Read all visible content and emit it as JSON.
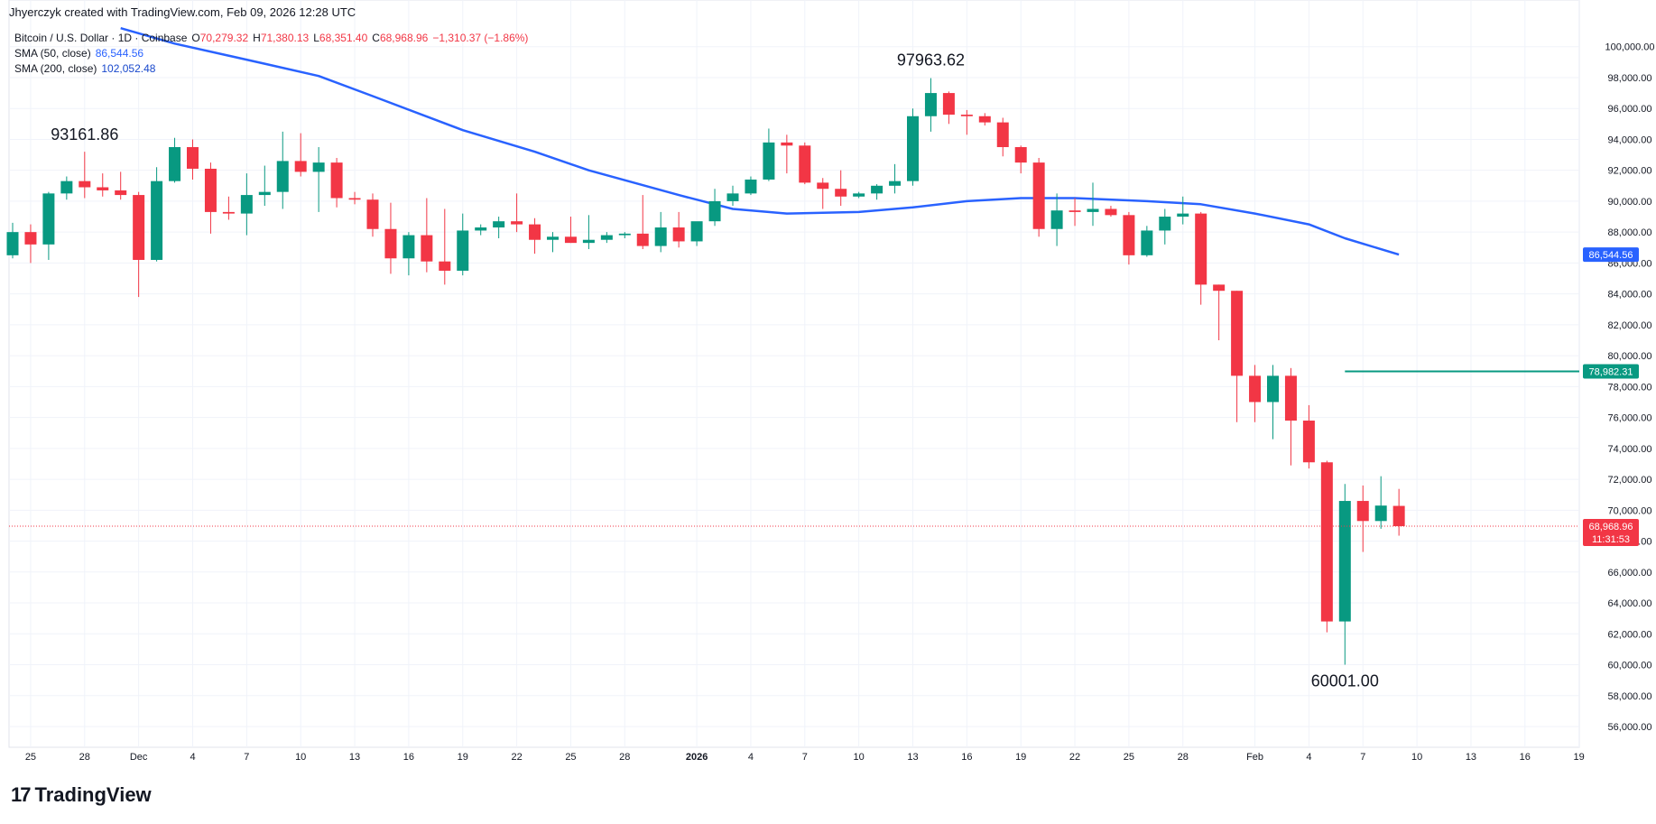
{
  "header": {
    "credit": "Jhyerczyk created with TradingView.com, Feb 09, 2026 12:28 UTC"
  },
  "legend": {
    "symbol": "Bitcoin / U.S. Dollar · 1D · Coinbase",
    "o_label": "O",
    "o": "70,279.32",
    "h_label": "H",
    "h": "71,380.13",
    "l_label": "L",
    "l": "68,351.40",
    "c_label": "C",
    "c": "68,968.96",
    "change": "−1,310.37 (−1.86%)",
    "sma50_label": "SMA (50, close)",
    "sma50_value": "86,544.56",
    "sma200_label": "SMA (200, close)",
    "sma200_value": "102,052.48"
  },
  "footer": {
    "logo_mark": "17",
    "logo_text": "TradingView"
  },
  "colors": {
    "up": "#089981",
    "down": "#f23645",
    "sma50": "#2962ff",
    "hline": "#089981",
    "grid": "#f0f3fa",
    "text": "#131722"
  },
  "chart_data": {
    "type": "candlestick",
    "title": "Bitcoin / U.S. Dollar · 1D · Coinbase",
    "ylim": [
      54800,
      101200
    ],
    "y_ticks": [
      56000,
      58000,
      60000,
      62000,
      64000,
      66000,
      68000,
      70000,
      72000,
      74000,
      76000,
      78000,
      80000,
      82000,
      84000,
      86000,
      88000,
      90000,
      92000,
      94000,
      96000,
      98000,
      100000
    ],
    "y_tick_labels": [
      "56,000.00",
      "58,000.00",
      "60,000.00",
      "62,000.00",
      "64,000.00",
      "66,000.00",
      "68,000.00",
      "70,000.00",
      "72,000.00",
      "74,000.00",
      "76,000.00",
      "78,000.00",
      "80,000.00",
      "82,000.00",
      "84,000.00",
      "86,000.00",
      "88,000.00",
      "90,000.00",
      "92,000.00",
      "94,000.00",
      "96,000.00",
      "98,000.00",
      "100,000.00"
    ],
    "x_axis_start": "2025-11-24",
    "x_ticks": [
      {
        "date": "2025-11-25",
        "label": "25"
      },
      {
        "date": "2025-11-28",
        "label": "28"
      },
      {
        "date": "2025-12-01",
        "label": "Dec"
      },
      {
        "date": "2025-12-04",
        "label": "4"
      },
      {
        "date": "2025-12-07",
        "label": "7"
      },
      {
        "date": "2025-12-10",
        "label": "10"
      },
      {
        "date": "2025-12-13",
        "label": "13"
      },
      {
        "date": "2025-12-16",
        "label": "16"
      },
      {
        "date": "2025-12-19",
        "label": "19"
      },
      {
        "date": "2025-12-22",
        "label": "22"
      },
      {
        "date": "2025-12-25",
        "label": "25"
      },
      {
        "date": "2025-12-28",
        "label": "28"
      },
      {
        "date": "2026-01-01",
        "label": "2026"
      },
      {
        "date": "2026-01-04",
        "label": "4"
      },
      {
        "date": "2026-01-07",
        "label": "7"
      },
      {
        "date": "2026-01-10",
        "label": "10"
      },
      {
        "date": "2026-01-13",
        "label": "13"
      },
      {
        "date": "2026-01-16",
        "label": "16"
      },
      {
        "date": "2026-01-19",
        "label": "19"
      },
      {
        "date": "2026-01-22",
        "label": "22"
      },
      {
        "date": "2026-01-25",
        "label": "25"
      },
      {
        "date": "2026-01-28",
        "label": "28"
      },
      {
        "date": "2026-02-01",
        "label": "Feb"
      },
      {
        "date": "2026-02-04",
        "label": "4"
      },
      {
        "date": "2026-02-07",
        "label": "7"
      },
      {
        "date": "2026-02-10",
        "label": "10"
      },
      {
        "date": "2026-02-13",
        "label": "13"
      },
      {
        "date": "2026-02-16",
        "label": "16"
      },
      {
        "date": "2026-02-19",
        "label": "19"
      }
    ],
    "candles": [
      {
        "date": "2025-11-24",
        "o": 86500,
        "h": 88600,
        "l": 86300,
        "c": 88000
      },
      {
        "date": "2025-11-25",
        "o": 88000,
        "h": 88500,
        "l": 86000,
        "c": 87200
      },
      {
        "date": "2025-11-26",
        "o": 87200,
        "h": 90600,
        "l": 86200,
        "c": 90500
      },
      {
        "date": "2025-11-27",
        "o": 90500,
        "h": 91600,
        "l": 90100,
        "c": 91300
      },
      {
        "date": "2025-11-28",
        "o": 91300,
        "h": 93200,
        "l": 90200,
        "c": 90900
      },
      {
        "date": "2025-11-29",
        "o": 90900,
        "h": 91800,
        "l": 90300,
        "c": 90700
      },
      {
        "date": "2025-11-30",
        "o": 90700,
        "h": 91900,
        "l": 90100,
        "c": 90400
      },
      {
        "date": "2025-12-01",
        "o": 90400,
        "h": 90600,
        "l": 83800,
        "c": 86200
      },
      {
        "date": "2025-12-02",
        "o": 86200,
        "h": 92200,
        "l": 86100,
        "c": 91300
      },
      {
        "date": "2025-12-03",
        "o": 91300,
        "h": 94100,
        "l": 91200,
        "c": 93500
      },
      {
        "date": "2025-12-04",
        "o": 93500,
        "h": 94000,
        "l": 91400,
        "c": 92100
      },
      {
        "date": "2025-12-05",
        "o": 92100,
        "h": 92500,
        "l": 87900,
        "c": 89300
      },
      {
        "date": "2025-12-06",
        "o": 89300,
        "h": 90300,
        "l": 88800,
        "c": 89200
      },
      {
        "date": "2025-12-07",
        "o": 89200,
        "h": 91800,
        "l": 87800,
        "c": 90400
      },
      {
        "date": "2025-12-08",
        "o": 90400,
        "h": 92300,
        "l": 89700,
        "c": 90600
      },
      {
        "date": "2025-12-09",
        "o": 90600,
        "h": 94500,
        "l": 89500,
        "c": 92600
      },
      {
        "date": "2025-12-10",
        "o": 92600,
        "h": 94400,
        "l": 91600,
        "c": 91900
      },
      {
        "date": "2025-12-11",
        "o": 91900,
        "h": 93500,
        "l": 89300,
        "c": 92500
      },
      {
        "date": "2025-12-12",
        "o": 92500,
        "h": 92800,
        "l": 89600,
        "c": 90200
      },
      {
        "date": "2025-12-13",
        "o": 90200,
        "h": 90600,
        "l": 89800,
        "c": 90100
      },
      {
        "date": "2025-12-14",
        "o": 90100,
        "h": 90500,
        "l": 87700,
        "c": 88200
      },
      {
        "date": "2025-12-15",
        "o": 88200,
        "h": 89900,
        "l": 85300,
        "c": 86300
      },
      {
        "date": "2025-12-16",
        "o": 86300,
        "h": 88000,
        "l": 85200,
        "c": 87800
      },
      {
        "date": "2025-12-17",
        "o": 87800,
        "h": 90200,
        "l": 85400,
        "c": 86100
      },
      {
        "date": "2025-12-18",
        "o": 86100,
        "h": 89500,
        "l": 84600,
        "c": 85500
      },
      {
        "date": "2025-12-19",
        "o": 85500,
        "h": 89200,
        "l": 85200,
        "c": 88100
      },
      {
        "date": "2025-12-20",
        "o": 88100,
        "h": 88500,
        "l": 87800,
        "c": 88300
      },
      {
        "date": "2025-12-21",
        "o": 88300,
        "h": 89000,
        "l": 87600,
        "c": 88700
      },
      {
        "date": "2025-12-22",
        "o": 88700,
        "h": 90500,
        "l": 88000,
        "c": 88500
      },
      {
        "date": "2025-12-23",
        "o": 88500,
        "h": 88900,
        "l": 86600,
        "c": 87500
      },
      {
        "date": "2025-12-24",
        "o": 87500,
        "h": 88000,
        "l": 86700,
        "c": 87700
      },
      {
        "date": "2025-12-25",
        "o": 87700,
        "h": 89000,
        "l": 87300,
        "c": 87300
      },
      {
        "date": "2025-12-26",
        "o": 87300,
        "h": 89100,
        "l": 86900,
        "c": 87500
      },
      {
        "date": "2025-12-27",
        "o": 87500,
        "h": 88000,
        "l": 87300,
        "c": 87800
      },
      {
        "date": "2025-12-28",
        "o": 87800,
        "h": 88000,
        "l": 87600,
        "c": 87900
      },
      {
        "date": "2025-12-29",
        "o": 87900,
        "h": 90400,
        "l": 86900,
        "c": 87100
      },
      {
        "date": "2025-12-30",
        "o": 87100,
        "h": 89300,
        "l": 86700,
        "c": 88300
      },
      {
        "date": "2025-12-31",
        "o": 88300,
        "h": 89300,
        "l": 87000,
        "c": 87400
      },
      {
        "date": "2026-01-01",
        "o": 87400,
        "h": 88600,
        "l": 87100,
        "c": 88700
      },
      {
        "date": "2026-01-02",
        "o": 88700,
        "h": 90800,
        "l": 88400,
        "c": 90000
      },
      {
        "date": "2026-01-03",
        "o": 90000,
        "h": 91000,
        "l": 89700,
        "c": 90500
      },
      {
        "date": "2026-01-04",
        "o": 90500,
        "h": 91600,
        "l": 90400,
        "c": 91400
      },
      {
        "date": "2026-01-05",
        "o": 91400,
        "h": 94700,
        "l": 91300,
        "c": 93800
      },
      {
        "date": "2026-01-06",
        "o": 93800,
        "h": 94300,
        "l": 91800,
        "c": 93600
      },
      {
        "date": "2026-01-07",
        "o": 93600,
        "h": 93800,
        "l": 91100,
        "c": 91200
      },
      {
        "date": "2026-01-08",
        "o": 91200,
        "h": 91500,
        "l": 89500,
        "c": 90800
      },
      {
        "date": "2026-01-09",
        "o": 90800,
        "h": 92000,
        "l": 89700,
        "c": 90300
      },
      {
        "date": "2026-01-10",
        "o": 90300,
        "h": 90600,
        "l": 90200,
        "c": 90500
      },
      {
        "date": "2026-01-11",
        "o": 90500,
        "h": 91100,
        "l": 90100,
        "c": 91000
      },
      {
        "date": "2026-01-12",
        "o": 91000,
        "h": 92400,
        "l": 90500,
        "c": 91300
      },
      {
        "date": "2026-01-13",
        "o": 91300,
        "h": 96000,
        "l": 91000,
        "c": 95500
      },
      {
        "date": "2026-01-14",
        "o": 95500,
        "h": 97963.62,
        "l": 94500,
        "c": 97000
      },
      {
        "date": "2026-01-15",
        "o": 97000,
        "h": 97100,
        "l": 95000,
        "c": 95600
      },
      {
        "date": "2026-01-16",
        "o": 95600,
        "h": 95900,
        "l": 94300,
        "c": 95500
      },
      {
        "date": "2026-01-17",
        "o": 95500,
        "h": 95700,
        "l": 94900,
        "c": 95100
      },
      {
        "date": "2026-01-18",
        "o": 95100,
        "h": 95400,
        "l": 92900,
        "c": 93500
      },
      {
        "date": "2026-01-19",
        "o": 93500,
        "h": 93600,
        "l": 91800,
        "c": 92500
      },
      {
        "date": "2026-01-20",
        "o": 92500,
        "h": 92800,
        "l": 87700,
        "c": 88200
      },
      {
        "date": "2026-01-21",
        "o": 88200,
        "h": 90500,
        "l": 87100,
        "c": 89400
      },
      {
        "date": "2026-01-22",
        "o": 89400,
        "h": 90200,
        "l": 88400,
        "c": 89300
      },
      {
        "date": "2026-01-23",
        "o": 89300,
        "h": 91200,
        "l": 88400,
        "c": 89500
      },
      {
        "date": "2026-01-24",
        "o": 89500,
        "h": 89700,
        "l": 89000,
        "c": 89100
      },
      {
        "date": "2026-01-25",
        "o": 89100,
        "h": 89300,
        "l": 85900,
        "c": 86500
      },
      {
        "date": "2026-01-26",
        "o": 86500,
        "h": 88400,
        "l": 86400,
        "c": 88100
      },
      {
        "date": "2026-01-27",
        "o": 88100,
        "h": 89500,
        "l": 87200,
        "c": 89000
      },
      {
        "date": "2026-01-28",
        "o": 89000,
        "h": 90300,
        "l": 88500,
        "c": 89200
      },
      {
        "date": "2026-01-29",
        "o": 89200,
        "h": 89300,
        "l": 83300,
        "c": 84600
      },
      {
        "date": "2026-01-30",
        "o": 84600,
        "h": 84600,
        "l": 81000,
        "c": 84200
      },
      {
        "date": "2026-01-31",
        "o": 84200,
        "h": 84200,
        "l": 75700,
        "c": 78700
      },
      {
        "date": "2026-02-01",
        "o": 78700,
        "h": 79400,
        "l": 75700,
        "c": 77000
      },
      {
        "date": "2026-02-02",
        "o": 77000,
        "h": 79400,
        "l": 74600,
        "c": 78700
      },
      {
        "date": "2026-02-03",
        "o": 78700,
        "h": 79200,
        "l": 72900,
        "c": 75800
      },
      {
        "date": "2026-02-04",
        "o": 75800,
        "h": 76800,
        "l": 72700,
        "c": 73100
      },
      {
        "date": "2026-02-05",
        "o": 73100,
        "h": 73200,
        "l": 62100,
        "c": 62800
      },
      {
        "date": "2026-02-06",
        "o": 62800,
        "h": 71700,
        "l": 60001,
        "c": 70600
      },
      {
        "date": "2026-02-07",
        "o": 70600,
        "h": 71600,
        "l": 67300,
        "c": 69300
      },
      {
        "date": "2026-02-08",
        "o": 69300,
        "h": 72200,
        "l": 68800,
        "c": 70300
      },
      {
        "date": "2026-02-09",
        "o": 70279.32,
        "h": 71380.13,
        "l": 68351.4,
        "c": 68968.96
      }
    ],
    "sma50": {
      "name": "SMA (50, close)",
      "points": [
        {
          "date": "2025-11-30",
          "v": 101200
        },
        {
          "date": "2025-12-03",
          "v": 100200
        },
        {
          "date": "2025-12-08",
          "v": 98900
        },
        {
          "date": "2025-12-11",
          "v": 98100
        },
        {
          "date": "2025-12-14",
          "v": 96800
        },
        {
          "date": "2025-12-19",
          "v": 94600
        },
        {
          "date": "2025-12-23",
          "v": 93200
        },
        {
          "date": "2025-12-26",
          "v": 92000
        },
        {
          "date": "2025-12-31",
          "v": 90400
        },
        {
          "date": "2026-01-03",
          "v": 89500
        },
        {
          "date": "2026-01-06",
          "v": 89200
        },
        {
          "date": "2026-01-10",
          "v": 89300
        },
        {
          "date": "2026-01-13",
          "v": 89600
        },
        {
          "date": "2026-01-16",
          "v": 90000
        },
        {
          "date": "2026-01-19",
          "v": 90200
        },
        {
          "date": "2026-01-22",
          "v": 90200
        },
        {
          "date": "2026-01-26",
          "v": 90000
        },
        {
          "date": "2026-01-29",
          "v": 89800
        },
        {
          "date": "2026-02-01",
          "v": 89200
        },
        {
          "date": "2026-02-04",
          "v": 88500
        },
        {
          "date": "2026-02-06",
          "v": 87600
        },
        {
          "date": "2026-02-09",
          "v": 86544.56
        }
      ]
    },
    "hline": {
      "start_date": "2026-02-06",
      "value": 78982.31
    },
    "price_labels": [
      {
        "value": 86544.56,
        "text": "86,544.56",
        "color": "#2962ff"
      },
      {
        "value": 78982.31,
        "text": "78,982.31",
        "color": "#089981"
      },
      {
        "value": 68968.96,
        "text": "68,968.96",
        "subtext": "11:31:53",
        "color": "#f23645"
      }
    ],
    "annotations": [
      {
        "text": "93161.86",
        "date": "2025-11-28",
        "value": 93161.86,
        "position": "above"
      },
      {
        "text": "97963.62",
        "date": "2026-01-14",
        "value": 97963.62,
        "position": "above"
      },
      {
        "text": "60001.00",
        "date": "2026-02-06",
        "value": 60001,
        "position": "below"
      }
    ]
  }
}
